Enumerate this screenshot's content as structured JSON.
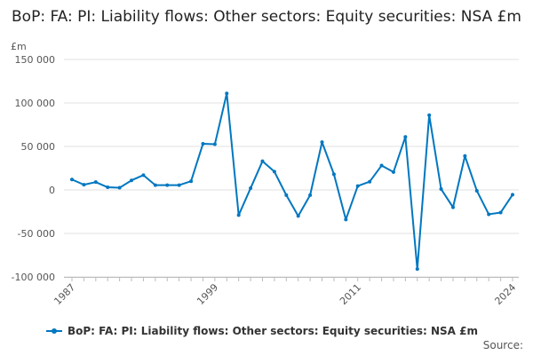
{
  "chart_data": {
    "type": "line",
    "title": "BoP: FA: PI: Liability flows: Other sectors: Equity securities: NSA £m",
    "ylabel": "£m",
    "xlabel": "",
    "ylim": [
      -100000,
      150000
    ],
    "yticks": [
      -100000,
      -50000,
      0,
      50000,
      100000,
      150000
    ],
    "ytick_labels": [
      "-100 000",
      "-50 000",
      "0",
      "50 000",
      "100 000",
      "150 000"
    ],
    "xtick_labels": [
      "1987",
      "1999",
      "2011",
      "2024"
    ],
    "grid": true,
    "legend_position": "bottom",
    "color": "#0077c0",
    "series": [
      {
        "name": "BoP: FA: PI: Liability flows: Other sectors: Equity securities: NSA £m",
        "x": [
          1987,
          1988,
          1989,
          1990,
          1991,
          1992,
          1993,
          1994,
          1995,
          1996,
          1997,
          1998,
          1999,
          2000,
          2001,
          2002,
          2003,
          2004,
          2005,
          2006,
          2007,
          2008,
          2009,
          2010,
          2011,
          2012,
          2013,
          2014,
          2015,
          2016,
          2017,
          2018,
          2019,
          2020,
          2021,
          2022,
          2023,
          2024
        ],
        "values": [
          12000,
          6000,
          9000,
          3000,
          2500,
          11000,
          17000,
          5500,
          5500,
          5500,
          10000,
          53000,
          52500,
          111000,
          -29000,
          2000,
          33000,
          21000,
          -6000,
          -30000,
          -6000,
          55000,
          18000,
          -34000,
          4500,
          9500,
          28000,
          20500,
          61000,
          -91000,
          86000,
          1000,
          -20000,
          39000,
          -1000,
          -28000,
          -26000,
          -5500
        ]
      }
    ]
  },
  "source_label": "Source:"
}
